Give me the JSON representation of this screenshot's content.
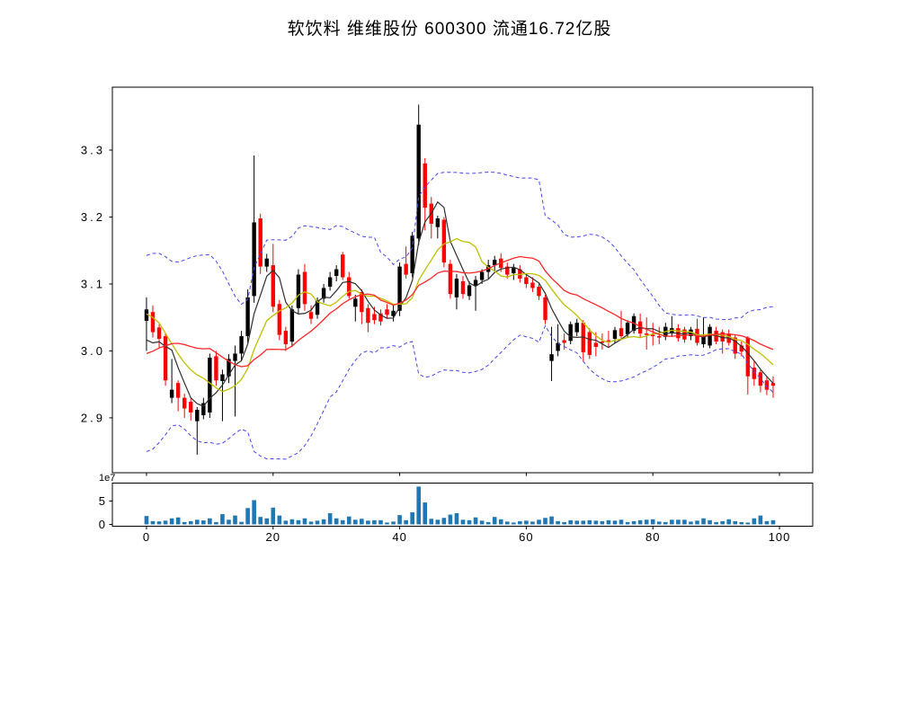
{
  "title": "软饮料 维维股份 600300 流通16.72亿股",
  "chart_data": {
    "type": "candlestick",
    "title": "软饮料 维维股份 600300 流通16.72亿股",
    "x_index_range": [
      0,
      99
    ],
    "xlim": [
      -5.39,
      105.25
    ],
    "x_ticks": [
      0,
      20,
      40,
      60,
      80,
      100
    ],
    "price_panel": {
      "ylim": [
        2.818,
        3.394
      ],
      "y_ticks": [
        2.9,
        3.0,
        3.1,
        3.2,
        3.3
      ],
      "y_tick_labels": [
        "2.9",
        "3.0",
        "3.1",
        "3.2",
        "3.3"
      ],
      "grid": false
    },
    "volume_panel": {
      "ylim": [
        -3850000,
        88500000
      ],
      "y_ticks": [
        0,
        50000000
      ],
      "y_tick_labels": [
        "0",
        "5"
      ],
      "scale_label": "1e7"
    },
    "candles_ohlc": [
      [
        3.045,
        3.08,
        3.0,
        3.062
      ],
      [
        3.058,
        3.068,
        3.02,
        3.028
      ],
      [
        3.035,
        3.04,
        3.004,
        3.018
      ],
      [
        3.022,
        3.026,
        2.948,
        2.956
      ],
      [
        2.93,
        2.988,
        2.922,
        2.942
      ],
      [
        2.952,
        2.956,
        2.91,
        2.93
      ],
      [
        2.93,
        2.936,
        2.9,
        2.914
      ],
      [
        2.924,
        2.93,
        2.896,
        2.908
      ],
      [
        2.895,
        2.916,
        2.845,
        2.912
      ],
      [
        2.904,
        2.93,
        2.898,
        2.922
      ],
      [
        2.908,
        2.996,
        2.9,
        2.99
      ],
      [
        2.992,
        3.0,
        2.948,
        2.956
      ],
      [
        2.955,
        2.972,
        2.895,
        2.965
      ],
      [
        2.962,
        2.995,
        2.952,
        2.988
      ],
      [
        2.985,
        3.008,
        2.902,
        2.996
      ],
      [
        2.996,
        3.03,
        2.986,
        3.022
      ],
      [
        3.022,
        3.092,
        3.012,
        3.08
      ],
      [
        3.082,
        3.292,
        3.072,
        3.192
      ],
      [
        3.198,
        3.205,
        3.115,
        3.126
      ],
      [
        3.126,
        3.145,
        3.118,
        3.138
      ],
      [
        3.128,
        3.16,
        3.058,
        3.066
      ],
      [
        3.07,
        3.076,
        3.016,
        3.024
      ],
      [
        3.03,
        3.036,
        3.0,
        3.01
      ],
      [
        3.014,
        3.068,
        3.006,
        3.062
      ],
      [
        3.064,
        3.122,
        3.056,
        3.114
      ],
      [
        3.118,
        3.13,
        3.06,
        3.07
      ],
      [
        3.058,
        3.068,
        3.04,
        3.048
      ],
      [
        3.054,
        3.08,
        3.048,
        3.075
      ],
      [
        3.078,
        3.1,
        3.072,
        3.094
      ],
      [
        3.096,
        3.118,
        3.09,
        3.11
      ],
      [
        3.112,
        3.128,
        3.104,
        3.122
      ],
      [
        3.144,
        3.148,
        3.106,
        3.11
      ],
      [
        3.11,
        3.118,
        3.078,
        3.082
      ],
      [
        3.066,
        3.084,
        3.044,
        3.078
      ],
      [
        3.088,
        3.092,
        3.04,
        3.058
      ],
      [
        3.064,
        3.07,
        3.028,
        3.042
      ],
      [
        3.055,
        3.066,
        3.04,
        3.046
      ],
      [
        3.056,
        3.062,
        3.038,
        3.044
      ],
      [
        3.062,
        3.07,
        3.048,
        3.054
      ],
      [
        3.052,
        3.068,
        3.044,
        3.06
      ],
      [
        3.06,
        3.132,
        3.052,
        3.126
      ],
      [
        3.13,
        3.156,
        3.108,
        3.114
      ],
      [
        3.116,
        3.178,
        3.11,
        3.172
      ],
      [
        3.168,
        3.368,
        3.158,
        3.338
      ],
      [
        3.28,
        3.288,
        3.18,
        3.214
      ],
      [
        3.22,
        3.23,
        3.168,
        3.19
      ],
      [
        3.185,
        3.202,
        3.168,
        3.198
      ],
      [
        3.196,
        3.2,
        3.125,
        3.132
      ],
      [
        3.13,
        3.136,
        3.078,
        3.085
      ],
      [
        3.08,
        3.115,
        3.062,
        3.108
      ],
      [
        3.104,
        3.112,
        3.078,
        3.085
      ],
      [
        3.082,
        3.104,
        3.076,
        3.098
      ],
      [
        3.098,
        3.112,
        3.06,
        3.106
      ],
      [
        3.106,
        3.122,
        3.1,
        3.118
      ],
      [
        3.118,
        3.136,
        3.108,
        3.128
      ],
      [
        3.128,
        3.142,
        3.12,
        3.136
      ],
      [
        3.138,
        3.146,
        3.118,
        3.124
      ],
      [
        3.126,
        3.132,
        3.108,
        3.114
      ],
      [
        3.116,
        3.13,
        3.106,
        3.124
      ],
      [
        3.122,
        3.128,
        3.102,
        3.108
      ],
      [
        3.11,
        3.116,
        3.094,
        3.1
      ],
      [
        3.102,
        3.11,
        3.088,
        3.094
      ],
      [
        3.096,
        3.102,
        3.076,
        3.082
      ],
      [
        3.08,
        3.084,
        3.04,
        3.046
      ],
      [
        2.985,
        3.036,
        2.955,
        2.995
      ],
      [
        3.0,
        3.04,
        2.992,
        3.012
      ],
      [
        3.016,
        3.026,
        3.002,
        3.012
      ],
      [
        3.015,
        3.044,
        3.01,
        3.04
      ],
      [
        3.028,
        3.048,
        3.022,
        3.042
      ],
      [
        3.042,
        3.046,
        2.984,
        2.998
      ],
      [
        3.028,
        3.034,
        2.988,
        2.994
      ],
      [
        3.012,
        3.028,
        2.992,
        3.006
      ],
      [
        3.014,
        3.026,
        3.002,
        3.012
      ],
      [
        3.016,
        3.03,
        3.006,
        3.015
      ],
      [
        3.018,
        3.036,
        3.012,
        3.031
      ],
      [
        3.034,
        3.06,
        3.018,
        3.022
      ],
      [
        3.025,
        3.046,
        3.02,
        3.042
      ],
      [
        3.03,
        3.056,
        3.026,
        3.052
      ],
      [
        3.044,
        3.056,
        3.02,
        3.026
      ],
      [
        3.026,
        3.05,
        3.002,
        3.024
      ],
      [
        3.024,
        3.042,
        3.008,
        3.022
      ],
      [
        3.022,
        3.036,
        3.01,
        3.02
      ],
      [
        3.021,
        3.042,
        3.016,
        3.036
      ],
      [
        3.026,
        3.052,
        3.022,
        3.034
      ],
      [
        3.034,
        3.04,
        3.014,
        3.019
      ],
      [
        3.032,
        3.036,
        3.012,
        3.017
      ],
      [
        3.022,
        3.036,
        3.016,
        3.032
      ],
      [
        3.033,
        3.048,
        3.008,
        3.012
      ],
      [
        3.01,
        3.05,
        3.005,
        3.022
      ],
      [
        3.008,
        3.04,
        3.004,
        3.036
      ],
      [
        3.03,
        3.036,
        3.01,
        3.014
      ],
      [
        3.028,
        3.032,
        2.996,
        3.014
      ],
      [
        3.026,
        3.032,
        3.008,
        3.012
      ],
      [
        3.02,
        3.024,
        2.988,
        2.996
      ],
      [
        3.008,
        3.014,
        2.992,
        2.999
      ],
      [
        3.02,
        3.022,
        2.935,
        2.962
      ],
      [
        2.975,
        2.985,
        2.948,
        2.958
      ],
      [
        2.968,
        2.972,
        2.938,
        2.948
      ],
      [
        2.956,
        2.962,
        2.934,
        2.942
      ],
      [
        2.952,
        2.962,
        2.93,
        2.948
      ]
    ],
    "volumes": {
      "unit": 1000000,
      "values": [
        18,
        7,
        6.5,
        8,
        13,
        15,
        5,
        7,
        10,
        8.5,
        13,
        5,
        22,
        10,
        19,
        5.5,
        35,
        52,
        16,
        13,
        36,
        19,
        8,
        11,
        9,
        13,
        6,
        8,
        11,
        24,
        13,
        9,
        17,
        10,
        12,
        8,
        9,
        9,
        4,
        6,
        20,
        9,
        26,
        81,
        47,
        12,
        10,
        14,
        21,
        24,
        10,
        9,
        15,
        8,
        5,
        16,
        11,
        6,
        4,
        7,
        8,
        6,
        10,
        14,
        17,
        7,
        5,
        9,
        8,
        8,
        9,
        8,
        7,
        9,
        8,
        10,
        5,
        7,
        9,
        10,
        11,
        6,
        5,
        10,
        10,
        10,
        6,
        8,
        13,
        9,
        5,
        7,
        11,
        7,
        5,
        4,
        13,
        19,
        7,
        9
      ]
    },
    "seed_closes_before_window": [
      2.96,
      2.92,
      2.89,
      2.88,
      2.92,
      2.95,
      2.97,
      2.96,
      2.94,
      2.98,
      3.08,
      3.1,
      3.11,
      3.1,
      3.08,
      3.05,
      3.01,
      2.99,
      2.97
    ],
    "overlays": [
      {
        "name": "ma5",
        "kind": "sma",
        "window": 5,
        "mult": 0,
        "color": "#2e2e2e",
        "dash": "",
        "width": 1.2
      },
      {
        "name": "ma10",
        "kind": "sma",
        "window": 10,
        "mult": 0,
        "color": "#bfbf00",
        "dash": "",
        "width": 1.3
      },
      {
        "name": "ma20",
        "kind": "sma",
        "window": 20,
        "mult": 0,
        "color": "#ff2626",
        "dash": "",
        "width": 1.3
      },
      {
        "name": "boll-upper",
        "kind": "boll",
        "window": 20,
        "mult": 2,
        "color": "#4646ee",
        "dash": "4,3",
        "width": 1
      },
      {
        "name": "boll-lower",
        "kind": "boll",
        "window": 20,
        "mult": -2,
        "color": "#4646ee",
        "dash": "4,3",
        "width": 1
      }
    ],
    "colors": {
      "up": "#000000",
      "down": "#ff0000",
      "volume": "#1f77b4",
      "axis": "#000000",
      "background": "#ffffff"
    }
  }
}
